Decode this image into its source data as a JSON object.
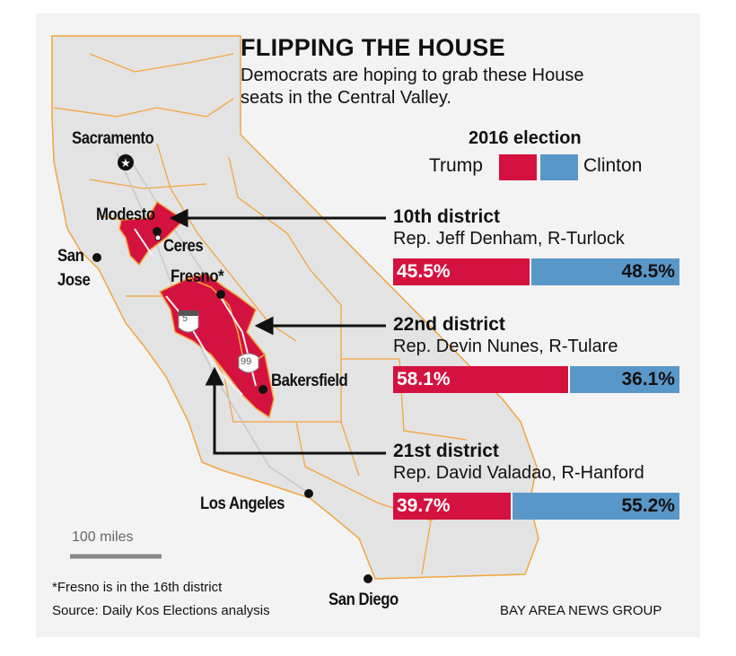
{
  "header": {
    "title": "FLIPPING THE HOUSE",
    "subtitle_line1": "Democrats are hoping to grab these House",
    "subtitle_line2": "seats in the Central Valley."
  },
  "legend": {
    "title": "2016 election",
    "items": [
      {
        "label": "Trump",
        "color": "#d4123f"
      },
      {
        "label": "Clinton",
        "color": "#5a97c9"
      }
    ]
  },
  "districts": [
    {
      "name": "10th district",
      "rep": "Rep. Jeff Denham, R-Turlock",
      "trump": 45.5,
      "clinton": 48.5,
      "trump_label": "45.5%",
      "clinton_label": "48.5%"
    },
    {
      "name": "22nd district",
      "rep": "Rep. Devin Nunes, R-Tulare",
      "trump": 58.1,
      "clinton": 36.1,
      "trump_label": "58.1%",
      "clinton_label": "36.1%"
    },
    {
      "name": "21st district",
      "rep": "Rep. David Valadao, R-Hanford",
      "trump": 39.7,
      "clinton": 55.2,
      "trump_label": "39.7%",
      "clinton_label": "55.2%"
    }
  ],
  "cities": {
    "sacramento": "Sacramento",
    "modesto": "Modesto",
    "ceres": "Ceres",
    "san_jose_1": "San",
    "san_jose_2": "Jose",
    "fresno": "Fresno*",
    "bakersfield": "Bakersfield",
    "los_angeles": "Los Angeles",
    "san_diego": "San Diego"
  },
  "highways": {
    "i5": "5",
    "ca99": "99"
  },
  "scale": {
    "label": "100 miles"
  },
  "footer": {
    "note": "*Fresno is in the 16th district",
    "source": "Source: Daily Kos Elections analysis",
    "credit": "BAY AREA NEWS GROUP"
  },
  "colors": {
    "district_border": "#f3a53c",
    "land": "#e3e3e3",
    "highlight": "#d4123f"
  }
}
